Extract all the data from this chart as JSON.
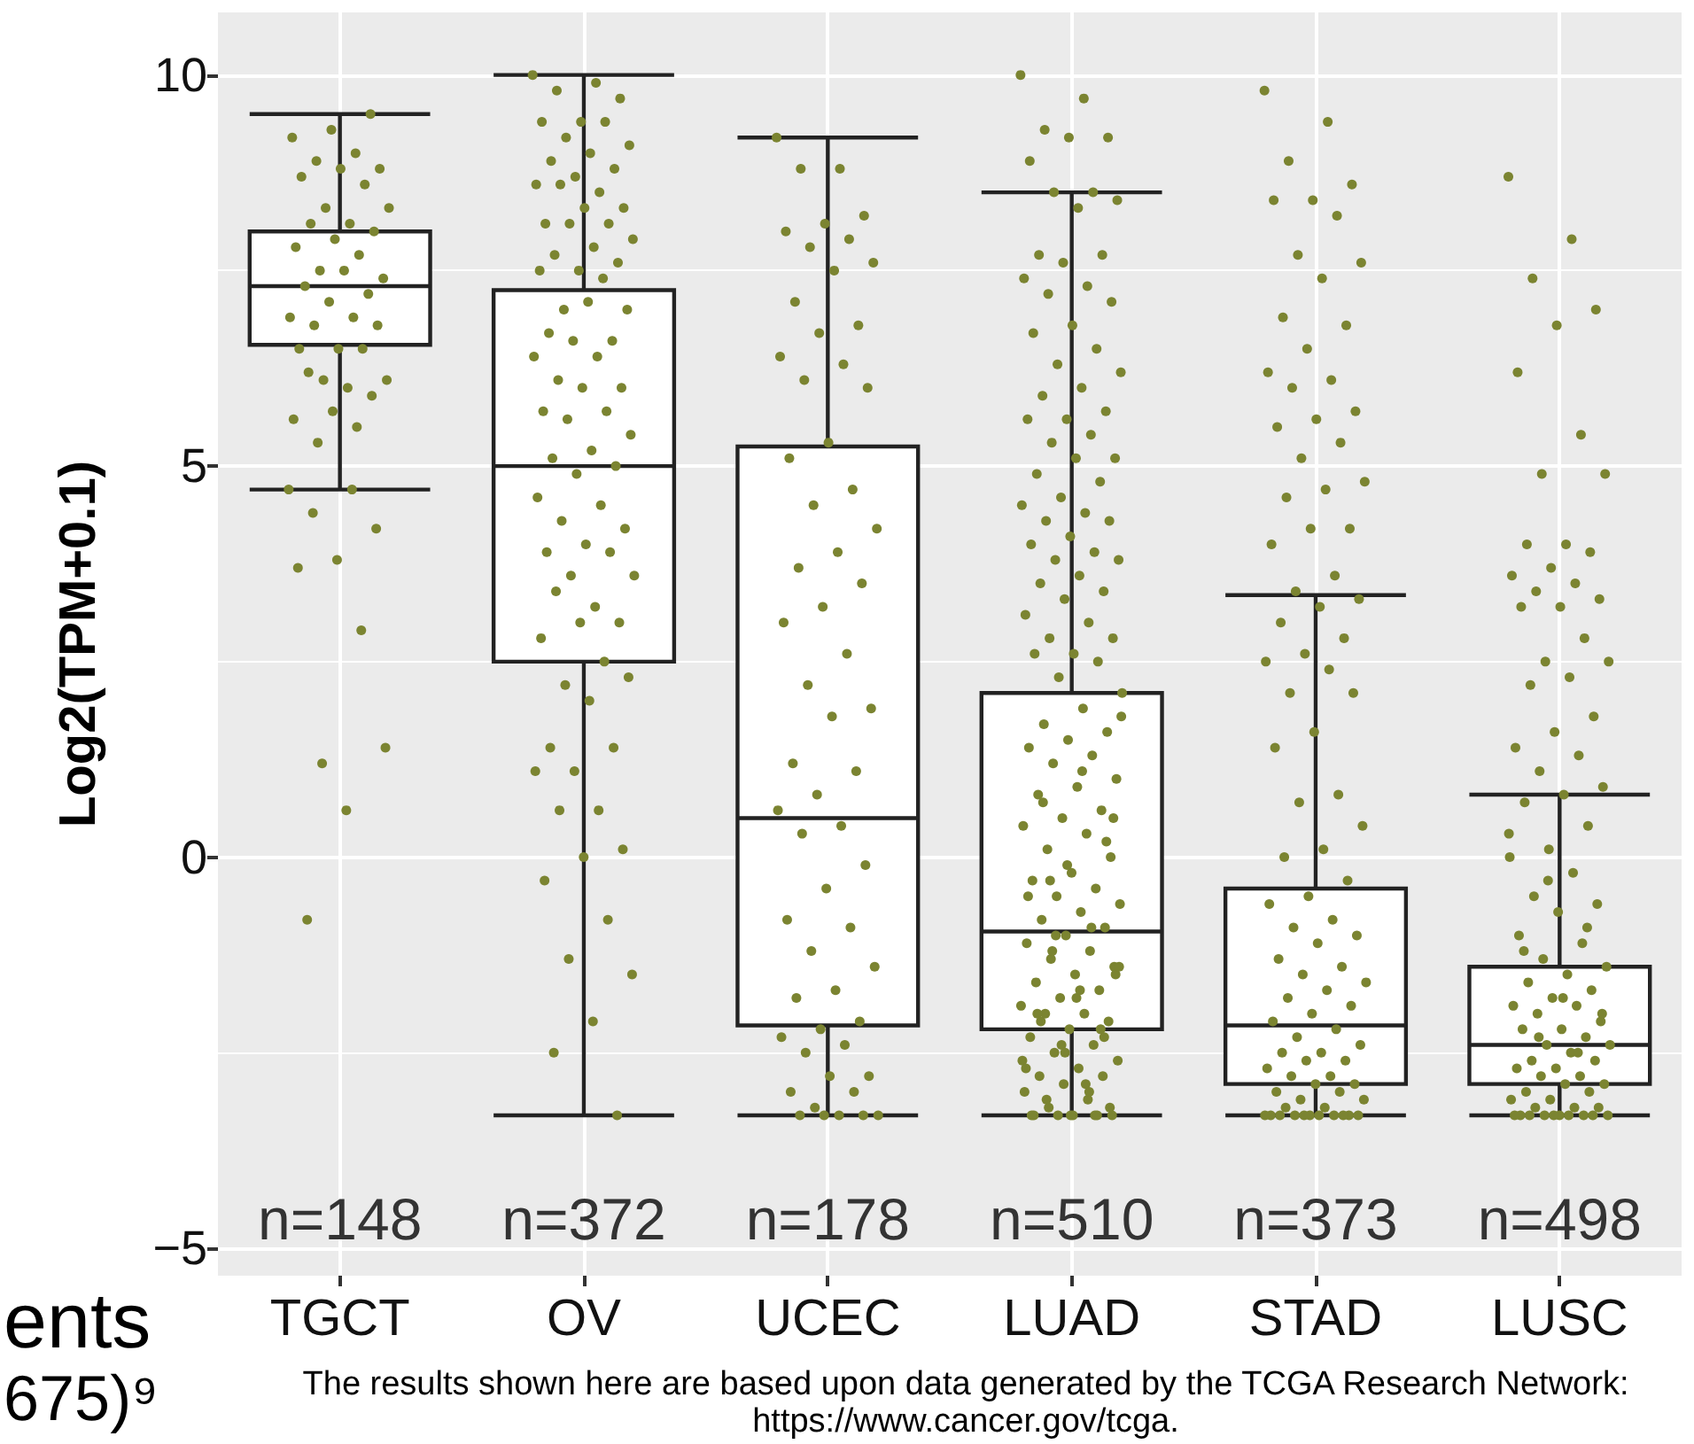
{
  "chart_data": {
    "type": "box",
    "ylabel": "Log2(TPM+0.1)",
    "categories": [
      "TGCT",
      "OV",
      "UCEC",
      "LUAD",
      "STAD",
      "LUSC"
    ],
    "ylim": [
      -5.35,
      10.8
    ],
    "yticks": [
      {
        "value": -5,
        "label": "−5"
      },
      {
        "value": -2.5,
        "label": null
      },
      0,
      {
        "value": 2.5,
        "label": null
      },
      5,
      {
        "value": 7.5,
        "label": null
      },
      10
    ],
    "grid": true,
    "boxes": [
      {
        "low": 4.7,
        "q1": 6.55,
        "median": 7.3,
        "q3": 8.0,
        "high": 9.5
      },
      {
        "low": -3.3,
        "q1": 2.5,
        "median": 5.0,
        "q3": 7.25,
        "high": 10.0
      },
      {
        "low": -3.3,
        "q1": -2.15,
        "median": 0.5,
        "q3": 5.25,
        "high": 9.2
      },
      {
        "low": -3.3,
        "q1": -2.2,
        "median": -0.95,
        "q3": 2.1,
        "high": 8.5
      },
      {
        "low": -3.3,
        "q1": -2.9,
        "median": -2.15,
        "q3": -0.4,
        "high": 3.35
      },
      {
        "low": -3.3,
        "q1": -2.9,
        "median": -2.4,
        "q3": -1.4,
        "high": 0.8
      }
    ],
    "series": [
      {
        "type": "scatter",
        "color": "#7b8431",
        "marker": "circle",
        "x": [
          "TGCT",
          "TGCT",
          "TGCT",
          "TGCT",
          "TGCT",
          "TGCT",
          "TGCT",
          "TGCT",
          "TGCT",
          "TGCT",
          "TGCT",
          "TGCT",
          "TGCT",
          "TGCT",
          "TGCT",
          "TGCT",
          "TGCT",
          "TGCT",
          "TGCT",
          "TGCT",
          "TGCT",
          "TGCT",
          "TGCT",
          "TGCT",
          "TGCT",
          "TGCT",
          "TGCT",
          "TGCT",
          "TGCT",
          "TGCT",
          "TGCT",
          "TGCT",
          "TGCT",
          "TGCT",
          "TGCT",
          "TGCT",
          "TGCT",
          "TGCT",
          "TGCT",
          "TGCT",
          "TGCT",
          "TGCT",
          "TGCT",
          "TGCT",
          "TGCT",
          "TGCT",
          "TGCT",
          "TGCT",
          "TGCT",
          "TGCT",
          "OV",
          "OV",
          "OV",
          "OV",
          "OV",
          "OV",
          "OV",
          "OV",
          "OV",
          "OV",
          "OV",
          "OV",
          "OV",
          "OV",
          "OV",
          "OV",
          "OV",
          "OV",
          "OV",
          "OV",
          "OV",
          "OV",
          "OV",
          "OV",
          "OV",
          "OV",
          "OV",
          "OV",
          "OV",
          "OV",
          "OV",
          "OV",
          "OV",
          "OV",
          "OV",
          "OV",
          "OV",
          "OV",
          "OV",
          "OV",
          "OV",
          "OV",
          "OV",
          "OV",
          "OV",
          "OV",
          "OV",
          "OV",
          "OV",
          "OV",
          "OV",
          "OV",
          "OV",
          "OV",
          "OV",
          "OV",
          "OV",
          "OV",
          "OV",
          "OV",
          "OV",
          "OV",
          "OV",
          "OV",
          "OV",
          "OV",
          "OV",
          "OV",
          "OV",
          "OV",
          "OV",
          "OV",
          "OV",
          "OV",
          "OV",
          "OV",
          "OV",
          "OV",
          "OV",
          "OV",
          "UCEC",
          "UCEC",
          "UCEC",
          "UCEC",
          "UCEC",
          "UCEC",
          "UCEC",
          "UCEC",
          "UCEC",
          "UCEC",
          "UCEC",
          "UCEC",
          "UCEC",
          "UCEC",
          "UCEC",
          "UCEC",
          "UCEC",
          "UCEC",
          "UCEC",
          "UCEC",
          "UCEC",
          "UCEC",
          "UCEC",
          "UCEC",
          "UCEC",
          "UCEC",
          "UCEC",
          "UCEC",
          "UCEC",
          "UCEC",
          "UCEC",
          "UCEC",
          "UCEC",
          "UCEC",
          "UCEC",
          "UCEC",
          "UCEC",
          "UCEC",
          "UCEC",
          "UCEC",
          "UCEC",
          "UCEC",
          "UCEC",
          "UCEC",
          "UCEC",
          "UCEC",
          "UCEC",
          "UCEC",
          "UCEC",
          "UCEC",
          "UCEC",
          "UCEC",
          "UCEC",
          "UCEC",
          "UCEC",
          "UCEC",
          "UCEC",
          "UCEC",
          "UCEC",
          "UCEC",
          "LUAD",
          "LUAD",
          "LUAD",
          "LUAD",
          "LUAD",
          "LUAD",
          "LUAD",
          "LUAD",
          "LUAD",
          "LUAD",
          "LUAD",
          "LUAD",
          "LUAD",
          "LUAD",
          "LUAD",
          "LUAD",
          "LUAD",
          "LUAD",
          "LUAD",
          "LUAD",
          "LUAD",
          "LUAD",
          "LUAD",
          "LUAD",
          "LUAD",
          "LUAD",
          "LUAD",
          "LUAD",
          "LUAD",
          "LUAD",
          "LUAD",
          "LUAD",
          "LUAD",
          "LUAD",
          "LUAD",
          "LUAD",
          "LUAD",
          "LUAD",
          "LUAD",
          "LUAD",
          "LUAD",
          "LUAD",
          "LUAD",
          "LUAD",
          "LUAD",
          "LUAD",
          "LUAD",
          "LUAD",
          "LUAD",
          "LUAD",
          "LUAD",
          "LUAD",
          "LUAD",
          "LUAD",
          "LUAD",
          "LUAD",
          "LUAD",
          "LUAD",
          "LUAD",
          "LUAD",
          "LUAD",
          "LUAD",
          "LUAD",
          "LUAD",
          "LUAD",
          "LUAD",
          "LUAD",
          "LUAD",
          "LUAD",
          "LUAD",
          "LUAD",
          "LUAD",
          "LUAD",
          "LUAD",
          "LUAD",
          "LUAD",
          "LUAD",
          "LUAD",
          "LUAD",
          "LUAD",
          "LUAD",
          "LUAD",
          "LUAD",
          "LUAD",
          "LUAD",
          "LUAD",
          "LUAD",
          "LUAD",
          "LUAD",
          "LUAD",
          "LUAD",
          "LUAD",
          "LUAD",
          "LUAD",
          "LUAD",
          "LUAD",
          "LUAD",
          "LUAD",
          "LUAD",
          "LUAD",
          "LUAD",
          "LUAD",
          "LUAD",
          "LUAD",
          "LUAD",
          "LUAD",
          "LUAD",
          "LUAD",
          "LUAD",
          "LUAD",
          "LUAD",
          "LUAD",
          "LUAD",
          "LUAD",
          "LUAD",
          "LUAD",
          "LUAD",
          "LUAD",
          "LUAD",
          "LUAD",
          "LUAD",
          "LUAD",
          "LUAD",
          "LUAD",
          "LUAD",
          "LUAD",
          "LUAD",
          "LUAD",
          "LUAD",
          "LUAD",
          "LUAD",
          "LUAD",
          "LUAD",
          "LUAD",
          "LUAD",
          "LUAD",
          "LUAD",
          "LUAD",
          "LUAD",
          "LUAD",
          "STAD",
          "STAD",
          "STAD",
          "STAD",
          "STAD",
          "STAD",
          "STAD",
          "STAD",
          "STAD",
          "STAD",
          "STAD",
          "STAD",
          "STAD",
          "STAD",
          "STAD",
          "STAD",
          "STAD",
          "STAD",
          "STAD",
          "STAD",
          "STAD",
          "STAD",
          "STAD",
          "STAD",
          "STAD",
          "STAD",
          "STAD",
          "STAD",
          "STAD",
          "STAD",
          "STAD",
          "STAD",
          "STAD",
          "STAD",
          "STAD",
          "STAD",
          "STAD",
          "STAD",
          "STAD",
          "STAD",
          "STAD",
          "STAD",
          "STAD",
          "STAD",
          "STAD",
          "STAD",
          "STAD",
          "STAD",
          "STAD",
          "STAD",
          "STAD",
          "STAD",
          "STAD",
          "STAD",
          "STAD",
          "STAD",
          "STAD",
          "STAD",
          "STAD",
          "STAD",
          "STAD",
          "STAD",
          "STAD",
          "STAD",
          "STAD",
          "STAD",
          "STAD",
          "STAD",
          "STAD",
          "STAD",
          "STAD",
          "STAD",
          "STAD",
          "STAD",
          "STAD",
          "STAD",
          "STAD",
          "STAD",
          "STAD",
          "STAD",
          "STAD",
          "STAD",
          "STAD",
          "STAD",
          "STAD",
          "STAD",
          "STAD",
          "STAD",
          "STAD",
          "STAD",
          "LUSC",
          "LUSC",
          "LUSC",
          "LUSC",
          "LUSC",
          "LUSC",
          "LUSC",
          "LUSC",
          "LUSC",
          "LUSC",
          "LUSC",
          "LUSC",
          "LUSC",
          "LUSC",
          "LUSC",
          "LUSC",
          "LUSC",
          "LUSC",
          "LUSC",
          "LUSC",
          "LUSC",
          "LUSC",
          "LUSC",
          "LUSC",
          "LUSC",
          "LUSC",
          "LUSC",
          "LUSC",
          "LUSC",
          "LUSC",
          "LUSC",
          "LUSC",
          "LUSC",
          "LUSC",
          "LUSC",
          "LUSC",
          "LUSC",
          "LUSC",
          "LUSC",
          "LUSC",
          "LUSC",
          "LUSC",
          "LUSC",
          "LUSC",
          "LUSC",
          "LUSC",
          "LUSC",
          "LUSC",
          "LUSC",
          "LUSC",
          "LUSC",
          "LUSC",
          "LUSC",
          "LUSC",
          "LUSC",
          "LUSC",
          "LUSC",
          "LUSC",
          "LUSC",
          "LUSC",
          "LUSC",
          "LUSC",
          "LUSC",
          "LUSC",
          "LUSC",
          "LUSC",
          "LUSC",
          "LUSC",
          "LUSC",
          "LUSC",
          "LUSC",
          "LUSC",
          "LUSC",
          "LUSC",
          "LUSC",
          "LUSC",
          "LUSC",
          "LUSC",
          "LUSC",
          "LUSC",
          "LUSC",
          "LUSC",
          "LUSC",
          "LUSC",
          "LUSC",
          "LUSC",
          "LUSC",
          "LUSC",
          "LUSC",
          "LUSC"
        ],
        "values": [
          4.7,
          4.7,
          4.4,
          4.2,
          3.8,
          3.7,
          2.9,
          1.2,
          1.4,
          0.6,
          -0.8,
          9.5,
          9.3,
          9.2,
          9.0,
          8.9,
          8.8,
          8.8,
          8.7,
          8.6,
          8.3,
          8.3,
          8.1,
          8.1,
          8.0,
          7.9,
          7.8,
          7.7,
          7.5,
          7.4,
          7.5,
          7.3,
          7.2,
          7.1,
          6.9,
          6.9,
          6.8,
          6.8,
          6.5,
          6.5,
          6.5,
          6.1,
          6.1,
          6.0,
          6.2,
          5.9,
          5.7,
          5.6,
          5.5,
          5.3,
          10.0,
          9.9,
          9.8,
          9.7,
          9.4,
          9.4,
          9.4,
          9.2,
          9.1,
          9.0,
          8.9,
          8.8,
          8.7,
          8.6,
          8.5,
          8.6,
          8.3,
          8.3,
          8.1,
          8.1,
          8.1,
          7.9,
          7.8,
          7.7,
          7.6,
          7.5,
          7.5,
          7.4,
          7.0,
          7.0,
          7.1,
          6.7,
          6.6,
          6.6,
          6.4,
          6.4,
          6.1,
          6.0,
          6.0,
          5.7,
          5.7,
          5.6,
          5.4,
          5.2,
          5.1,
          5.0,
          4.9,
          4.6,
          4.5,
          4.3,
          4.2,
          4.0,
          3.9,
          3.9,
          3.6,
          3.6,
          3.2,
          3.4,
          3.0,
          3.0,
          2.8,
          2.5,
          2.2,
          2.3,
          2.0,
          1.4,
          1.4,
          1.1,
          1.1,
          0.6,
          0.6,
          0.1,
          0.0,
          -0.3,
          -0.8,
          -1.3,
          -1.5,
          -2.1,
          -2.5,
          -3.3,
          9.2,
          8.8,
          8.8,
          8.2,
          8.1,
          8.0,
          7.9,
          7.8,
          7.6,
          7.5,
          7.1,
          6.8,
          6.7,
          6.4,
          6.3,
          6.1,
          6.0,
          5.3,
          5.1,
          4.7,
          4.5,
          4.2,
          3.9,
          3.7,
          3.5,
          3.2,
          3.0,
          2.6,
          2.2,
          1.9,
          1.8,
          1.2,
          1.1,
          0.8,
          0.6,
          0.4,
          0.3,
          -0.1,
          -0.4,
          -0.8,
          -0.9,
          -1.2,
          -1.4,
          -1.7,
          -1.8,
          -2.1,
          -2.2,
          -2.3,
          -2.4,
          -2.5,
          -2.8,
          -2.8,
          -3.0,
          -3.0,
          -3.2,
          -3.3,
          -3.3,
          -3.3,
          -3.3,
          -3.3,
          10.0,
          9.7,
          9.3,
          9.2,
          9.2,
          8.9,
          8.5,
          8.5,
          8.4,
          8.3,
          7.7,
          7.7,
          7.6,
          7.4,
          7.3,
          7.2,
          7.1,
          6.8,
          6.7,
          6.5,
          6.3,
          6.2,
          6.0,
          5.9,
          5.7,
          5.6,
          5.6,
          5.4,
          5.3,
          5.1,
          5.1,
          4.9,
          4.8,
          4.6,
          4.5,
          4.4,
          4.3,
          4.3,
          4.1,
          4.0,
          3.9,
          3.8,
          3.8,
          3.6,
          3.5,
          3.4,
          3.3,
          3.1,
          3.0,
          2.8,
          2.8,
          2.6,
          2.6,
          2.5,
          2.3,
          2.1,
          1.9,
          1.7,
          1.6,
          1.5,
          1.4,
          1.3,
          1.2,
          1.0,
          0.9,
          0.8,
          0.6,
          0.5,
          0.4,
          0.3,
          0.1,
          0.0,
          -0.2,
          -0.3,
          -0.4,
          -0.5,
          -0.6,
          -0.7,
          -0.8,
          -0.9,
          -1.0,
          -1.1,
          -1.2,
          -1.3,
          -1.4,
          -1.5,
          -1.6,
          -1.7,
          -1.8,
          -1.9,
          -2.0,
          -2.0,
          -2.1,
          -2.2,
          -2.3,
          -2.4,
          -2.5,
          -2.6,
          -2.7,
          -2.8,
          -2.8,
          -2.9,
          -3.0,
          -3.1,
          -3.2,
          -3.3,
          -3.3,
          -3.3,
          -3.3,
          -3.3,
          1.8,
          1.1,
          0.7,
          0.2,
          -0.1,
          -0.5,
          -0.9,
          -1.2,
          -1.5,
          -1.8,
          -2.0,
          -2.2,
          -2.4,
          -2.6,
          -2.9,
          -3.1,
          -3.2,
          -3.3,
          -3.3,
          -3.3,
          -1.0,
          -1.4,
          -1.7,
          -2.1,
          -2.3,
          -2.5,
          -2.7,
          -3.0,
          -0.3,
          0.5,
          9.8,
          9.4,
          8.9,
          8.6,
          8.4,
          8.4,
          8.2,
          7.7,
          7.6,
          7.4,
          6.9,
          6.8,
          6.5,
          6.2,
          6.1,
          6.0,
          5.7,
          5.6,
          5.5,
          5.3,
          5.1,
          4.8,
          4.7,
          4.6,
          4.2,
          4.2,
          4.0,
          3.6,
          3.4,
          3.3,
          3.2,
          3.0,
          2.8,
          2.6,
          2.5,
          2.4,
          2.1,
          2.1,
          1.6,
          1.4,
          0.8,
          0.7,
          0.4,
          0.1,
          0.0,
          -0.3,
          -0.5,
          -0.6,
          -0.8,
          -0.9,
          -1.0,
          -1.1,
          -1.3,
          -1.4,
          -1.5,
          -1.6,
          -1.7,
          -1.8,
          -1.9,
          -2.0,
          -2.1,
          -2.2,
          -2.3,
          -2.4,
          -2.5,
          -2.5,
          -2.6,
          -2.6,
          -2.7,
          -2.8,
          -2.8,
          -2.9,
          -2.9,
          -3.0,
          -3.0,
          -3.1,
          -3.1,
          -3.2,
          -3.2,
          -3.3,
          -3.3,
          -3.3,
          -3.3,
          -3.3,
          -3.3,
          -3.3,
          -3.3,
          -3.3,
          -3.3,
          -3.3,
          8.7,
          7.9,
          7.4,
          7.0,
          6.8,
          6.2,
          5.4,
          4.9,
          4.9,
          4.0,
          4.0,
          3.9,
          3.7,
          3.6,
          3.5,
          3.4,
          3.3,
          3.2,
          3.2,
          2.8,
          2.5,
          2.5,
          2.3,
          2.2,
          1.8,
          1.6,
          1.4,
          1.3,
          1.1,
          0.9,
          0.8,
          0.7,
          0.4,
          0.1,
          0.0,
          -0.2,
          -0.5,
          -0.6,
          -0.7,
          -1.0,
          -1.1,
          -1.3,
          -1.4,
          -1.5,
          -1.6,
          -1.7,
          -1.8,
          -1.9,
          -1.9,
          -2.0,
          -2.1,
          -2.2,
          -2.2,
          -2.3,
          -2.4,
          -2.4,
          -2.5,
          -2.6,
          -2.6,
          -2.7,
          -2.7,
          -2.8,
          -2.8,
          -2.9,
          -2.9,
          -3.0,
          -3.0,
          -3.1,
          -3.1,
          -3.2,
          -3.2,
          -3.2,
          -3.3,
          -3.3,
          -3.3,
          -3.3,
          -3.3,
          -3.3,
          -3.3,
          -3.3,
          -3.3,
          -3.3,
          -2.5,
          -2.3,
          -2.0,
          -1.8,
          -1.2,
          -0.9,
          -0.3,
          0.3
        ]
      }
    ],
    "annotations": [
      "n=148",
      "n=372",
      "n=178",
      "n=510",
      "n=373",
      "n=498",
      "The results shown here are based upon data generated by the TCGA Research Network:\nhttps://www.cancer.gov/tcga.",
      "ents",
      "675)⁹"
    ]
  }
}
